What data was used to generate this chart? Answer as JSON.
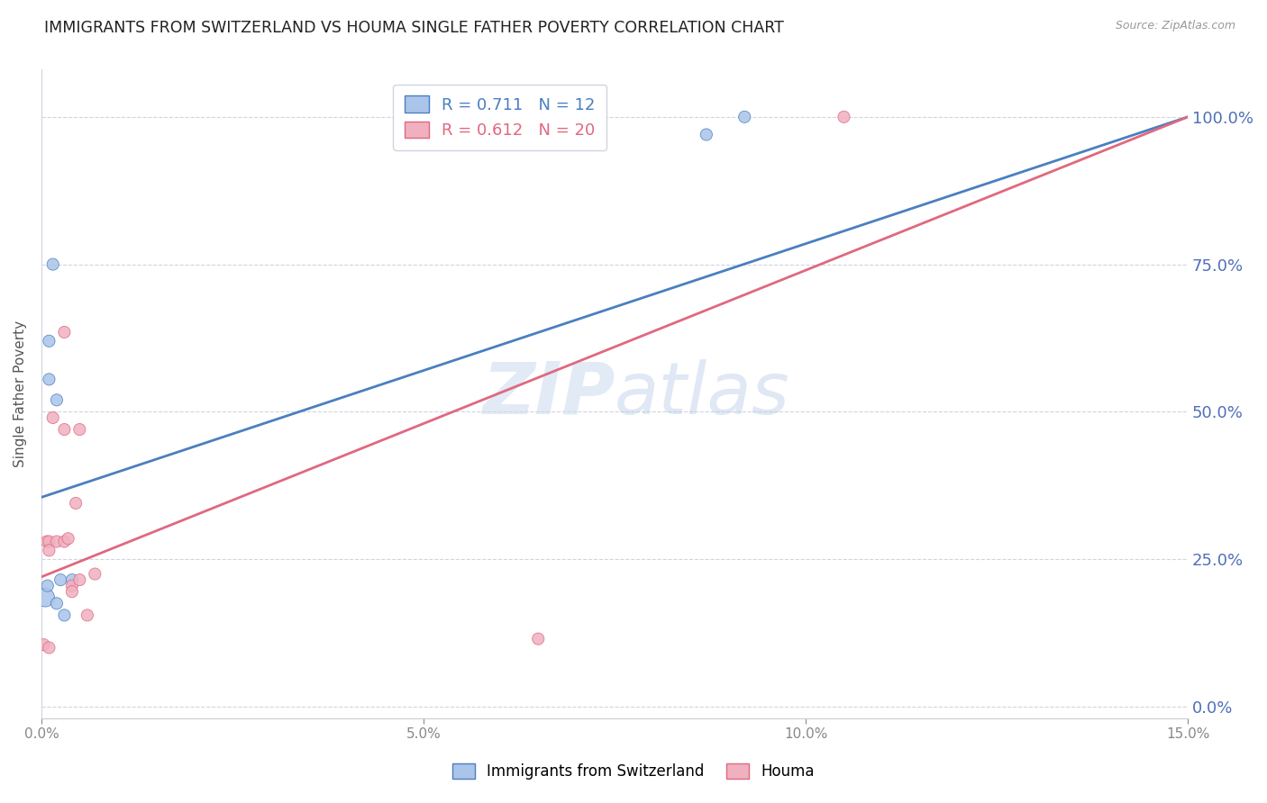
{
  "title": "IMMIGRANTS FROM SWITZERLAND VS HOUMA SINGLE FATHER POVERTY CORRELATION CHART",
  "source": "Source: ZipAtlas.com",
  "ylabel": "Single Father Poverty",
  "xlabel_ticks": [
    "0.0%",
    "5.0%",
    "10.0%",
    "15.0%"
  ],
  "xlabel_vals": [
    0.0,
    0.05,
    0.1,
    0.15
  ],
  "ylabel_ticks": [
    "0.0%",
    "25.0%",
    "50.0%",
    "75.0%",
    "100.0%"
  ],
  "ylabel_vals": [
    0.0,
    0.25,
    0.5,
    0.75,
    1.0
  ],
  "xlim": [
    0.0,
    0.15
  ],
  "ylim": [
    -0.02,
    1.08
  ],
  "watermark_zip": "ZIP",
  "watermark_atlas": "atlas",
  "blue_scatter": [
    [
      0.0005,
      0.185
    ],
    [
      0.0008,
      0.205
    ],
    [
      0.001,
      0.62
    ],
    [
      0.001,
      0.555
    ],
    [
      0.0015,
      0.75
    ],
    [
      0.002,
      0.52
    ],
    [
      0.002,
      0.175
    ],
    [
      0.0025,
      0.215
    ],
    [
      0.003,
      0.155
    ],
    [
      0.004,
      0.215
    ],
    [
      0.087,
      0.97
    ],
    [
      0.092,
      1.0
    ]
  ],
  "blue_scatter_sizes": [
    220,
    90,
    90,
    90,
    90,
    90,
    90,
    90,
    90,
    90,
    90,
    90
  ],
  "pink_scatter": [
    [
      0.0003,
      0.105
    ],
    [
      0.0007,
      0.28
    ],
    [
      0.001,
      0.28
    ],
    [
      0.001,
      0.265
    ],
    [
      0.0015,
      0.49
    ],
    [
      0.002,
      0.28
    ],
    [
      0.003,
      0.28
    ],
    [
      0.003,
      0.47
    ],
    [
      0.003,
      0.635
    ],
    [
      0.0035,
      0.285
    ],
    [
      0.004,
      0.205
    ],
    [
      0.004,
      0.195
    ],
    [
      0.0045,
      0.345
    ],
    [
      0.005,
      0.47
    ],
    [
      0.005,
      0.215
    ],
    [
      0.006,
      0.155
    ],
    [
      0.007,
      0.225
    ],
    [
      0.065,
      0.115
    ],
    [
      0.105,
      1.0
    ],
    [
      0.001,
      0.1
    ]
  ],
  "pink_scatter_sizes": [
    90,
    90,
    90,
    90,
    90,
    90,
    90,
    90,
    90,
    90,
    90,
    90,
    90,
    90,
    90,
    90,
    90,
    90,
    90,
    90
  ],
  "blue_line_x": [
    0.0,
    0.15
  ],
  "blue_line_y": [
    0.355,
    1.0
  ],
  "pink_line_x": [
    0.0,
    0.15
  ],
  "pink_line_y": [
    0.22,
    1.0
  ],
  "blue_color": "#aac4ea",
  "blue_line_color": "#4a7fc0",
  "pink_color": "#f0b0c0",
  "pink_line_color": "#e06880",
  "legend_blue_R": "0.711",
  "legend_blue_N": "12",
  "legend_pink_R": "0.612",
  "legend_pink_N": "20",
  "right_tick_color": "#5070b8",
  "grid_color": "#d0d4e0",
  "title_fontsize": 12.5,
  "axis_label_fontsize": 11,
  "tick_fontsize": 11
}
